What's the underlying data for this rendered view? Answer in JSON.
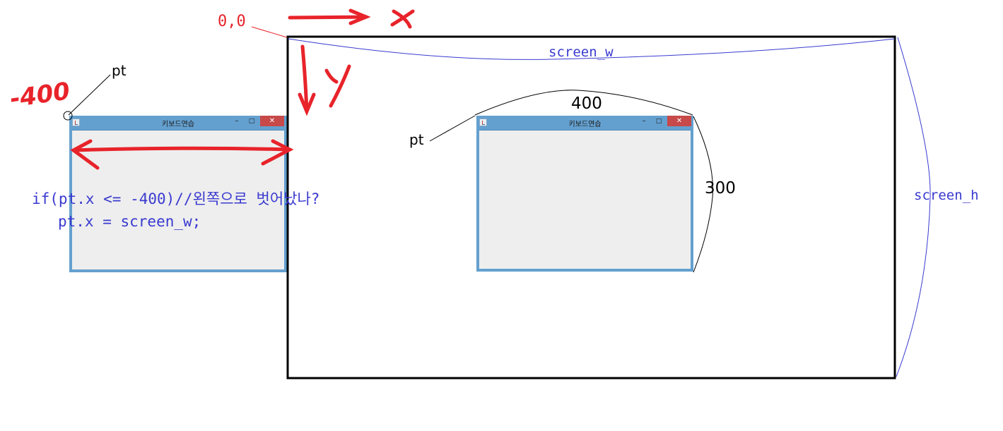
{
  "labels": {
    "origin": "0,0",
    "x_axis": "x",
    "y_axis": "y",
    "neg_value": "-400",
    "pt_left": "pt",
    "pt_right": "pt",
    "screen_w": "screen_w",
    "screen_h": "screen_h",
    "width_value": "400",
    "height_value": "300"
  },
  "code": {
    "line1": "if(pt.x <= -400)//왼쪽으로 벗어났나?",
    "line2": "pt.x = screen_w;"
  },
  "windows": {
    "left": {
      "title": "키보드연습",
      "min": "–",
      "max": "□",
      "close": "✕"
    },
    "right": {
      "title": "키보드연습",
      "min": "–",
      "max": "□",
      "close": "✕"
    }
  },
  "colors": {
    "annotation_red": "#e8232a",
    "code_blue": "#3a3ad0",
    "window_frame": "#64a0cf",
    "close_button": "#c7494a"
  }
}
